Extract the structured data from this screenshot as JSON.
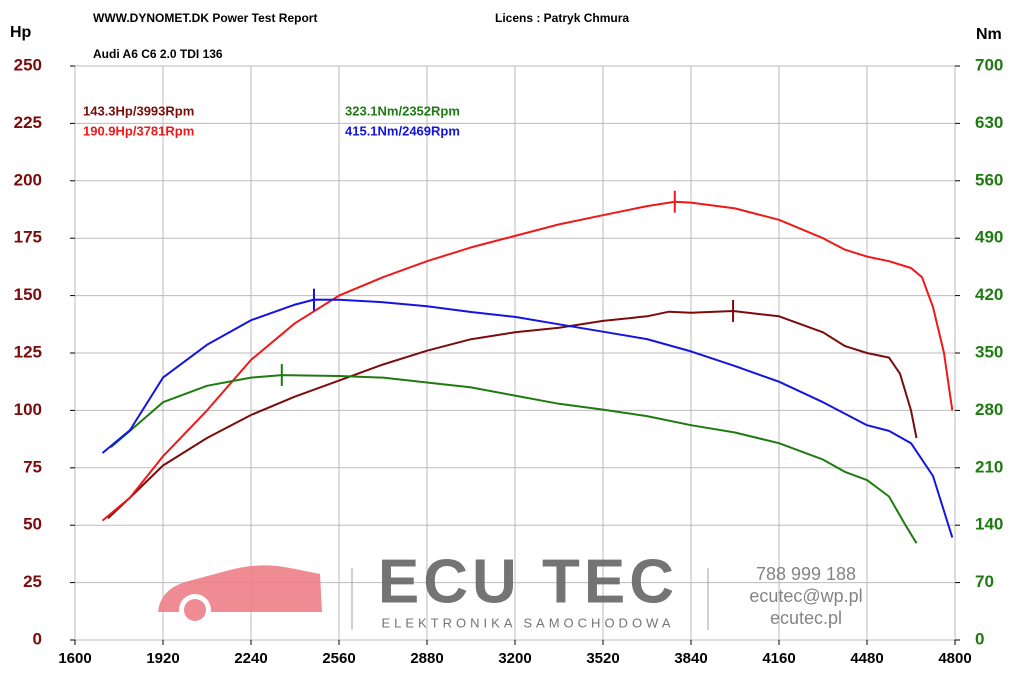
{
  "chart_data": {
    "type": "line",
    "title": "WWW.DYNOMET.DK  Power Test Report",
    "license": "Licens :  Patryk Chmura",
    "subtitle": "Audi A6 C6 2.0 TDI 136",
    "ylabel": "Hp",
    "y2label": "Nm",
    "xlim": [
      1600,
      4800
    ],
    "xticks": [
      1600,
      1920,
      2240,
      2560,
      2880,
      3200,
      3520,
      3840,
      4160,
      4480,
      4800
    ],
    "ylim": [
      0,
      250
    ],
    "yticks": [
      0,
      25,
      50,
      75,
      100,
      125,
      150,
      175,
      200,
      225,
      250
    ],
    "y2lim": [
      0,
      700
    ],
    "y2ticks": [
      0,
      70,
      140,
      210,
      280,
      350,
      420,
      490,
      560,
      630,
      700
    ],
    "ycolor": "#7a0c0c",
    "y2color": "#1f7a12",
    "grid": true,
    "annotations": [
      {
        "text": "143.3Hp/3993Rpm",
        "color": "#7a0c0c"
      },
      {
        "text": "190.9Hp/3781Rpm",
        "color": "#f01818"
      },
      {
        "text": "323.1Nm/2352Rpm",
        "color": "#1f7a12"
      },
      {
        "text": "415.1Nm/2469Rpm",
        "color": "#1414e0"
      }
    ],
    "series": [
      {
        "color": "#7a0c0c",
        "axis": "y",
        "x": [
          1720,
          1800,
          1920,
          2080,
          2240,
          2400,
          2560,
          2720,
          2880,
          3040,
          3200,
          3360,
          3520,
          3680,
          3760,
          3840,
          3993,
          4160,
          4320,
          4400,
          4480,
          4560,
          4600,
          4640,
          4660
        ],
        "values": [
          53,
          62,
          76,
          88,
          98,
          106,
          113,
          120,
          126,
          131,
          134,
          136,
          139,
          141,
          143,
          142.5,
          143.3,
          141,
          134,
          128,
          125,
          123,
          116,
          100,
          88
        ]
      },
      {
        "color": "#f01818",
        "axis": "y",
        "x": [
          1700,
          1800,
          1920,
          2080,
          2240,
          2400,
          2560,
          2720,
          2880,
          3040,
          3200,
          3360,
          3520,
          3680,
          3781,
          3840,
          4000,
          4160,
          4320,
          4400,
          4480,
          4560,
          4640,
          4680,
          4720,
          4760,
          4790
        ],
        "values": [
          52,
          62,
          80,
          100,
          122,
          138,
          150,
          158,
          165,
          171,
          176,
          181,
          185,
          189,
          190.9,
          190.5,
          188,
          183,
          175,
          170,
          167,
          165,
          162,
          158,
          145,
          125,
          100
        ]
      },
      {
        "color": "#1f7a12",
        "axis": "y2",
        "x": [
          1730,
          1800,
          1920,
          2080,
          2240,
          2352,
          2560,
          2720,
          2880,
          3040,
          3200,
          3360,
          3520,
          3680,
          3840,
          4000,
          4160,
          4320,
          4400,
          4480,
          4560,
          4620,
          4660
        ],
        "values": [
          235,
          255,
          290,
          310,
          320,
          323.1,
          322,
          320,
          314,
          308,
          298,
          288,
          281,
          273,
          262,
          253,
          240,
          220,
          205,
          195,
          175,
          140,
          118
        ]
      },
      {
        "color": "#1414e0",
        "axis": "y2",
        "x": [
          1700,
          1800,
          1920,
          2080,
          2240,
          2400,
          2469,
          2560,
          2720,
          2880,
          3040,
          3200,
          3360,
          3520,
          3680,
          3840,
          4000,
          4160,
          4320,
          4480,
          4560,
          4640,
          4720,
          4790
        ],
        "values": [
          228,
          256,
          320,
          360,
          390,
          409,
          415.1,
          415,
          412,
          407,
          400,
          394,
          385,
          376,
          367,
          352,
          334,
          315,
          290,
          262,
          255,
          240,
          200,
          125
        ]
      }
    ],
    "watermark": {
      "brand": "ECU TEC",
      "tagline": "ELEKTRONIKA SAMOCHODOWA",
      "phone": "788 999 188",
      "email": "ecutec@wp.pl",
      "website": "ecutec.pl"
    }
  }
}
